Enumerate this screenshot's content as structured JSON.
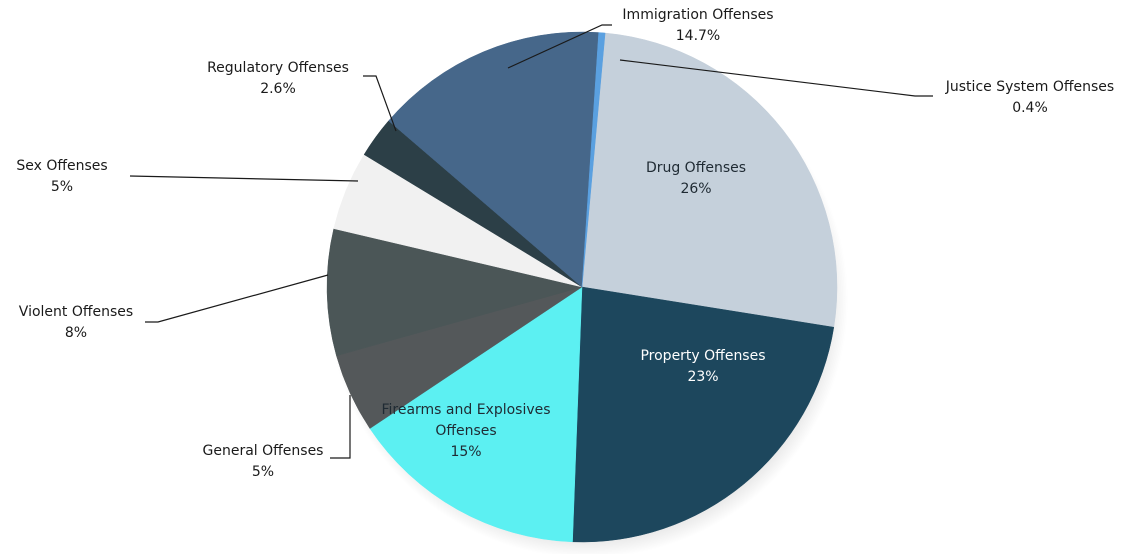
{
  "chart_data": {
    "type": "pie",
    "title": "",
    "slices": [
      {
        "label": "Drug Offenses",
        "value": 26,
        "display": "26%",
        "color": "#c5d0db"
      },
      {
        "label": "Property Offenses",
        "value": 23,
        "display": "23%",
        "color": "#1d475d"
      },
      {
        "label": "Firearms and Explosives Offenses",
        "value": 15,
        "display": "15%",
        "color": "#5cf0f2"
      },
      {
        "label": "General Offenses",
        "value": 5,
        "display": "5%",
        "color": "#54585a"
      },
      {
        "label": "Violent Offenses",
        "value": 8,
        "display": "8%",
        "color": "#4b5657"
      },
      {
        "label": "Sex Offenses",
        "value": 5,
        "display": "5%",
        "color": "#f1f1f1"
      },
      {
        "label": "Regulatory Offenses",
        "value": 2.6,
        "display": "2.6%",
        "color": "#2c3f47"
      },
      {
        "label": "Immigration Offenses",
        "value": 14.7,
        "display": "14.7%",
        "color": "#46678a"
      },
      {
        "label": "Justice System Offenses",
        "value": 0.4,
        "display": "0.4%",
        "color": "#5aa0e0"
      }
    ]
  }
}
